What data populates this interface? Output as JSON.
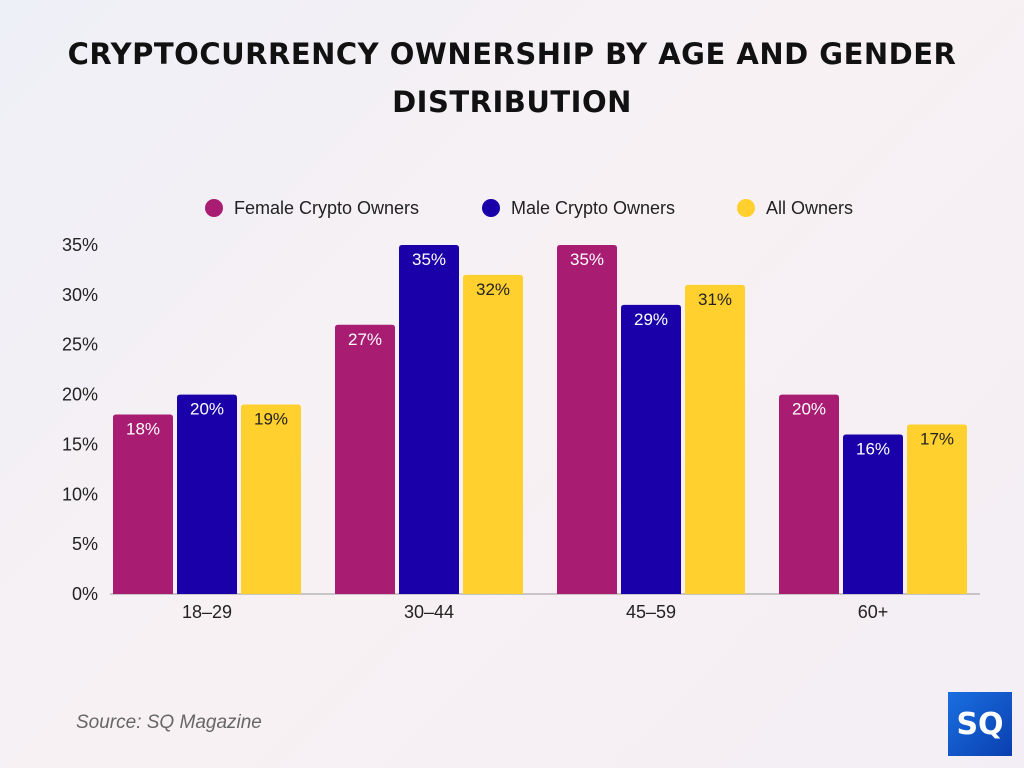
{
  "chart_data": {
    "type": "bar",
    "title": "CRYPTOCURRENCY OWNERSHIP BY AGE AND GENDER DISTRIBUTION",
    "categories": [
      "18–29",
      "30–44",
      "45–59",
      "60+"
    ],
    "series": [
      {
        "name": "Female Crypto Owners",
        "color": "#A81C72",
        "values": [
          18,
          27,
          35,
          20
        ]
      },
      {
        "name": "Male Crypto Owners",
        "color": "#1A00A8",
        "values": [
          20,
          35,
          29,
          16
        ]
      },
      {
        "name": "All Owners",
        "color": "#FFD02E",
        "values": [
          19,
          32,
          31,
          17
        ]
      }
    ],
    "ylim": [
      0,
      35
    ],
    "yticks": [
      "0%",
      "5%",
      "10%",
      "15%",
      "20%",
      "25%",
      "30%",
      "35%"
    ],
    "legend": "top-center",
    "grid": false
  },
  "source": "Source: SQ Magazine",
  "logo": "SQ"
}
